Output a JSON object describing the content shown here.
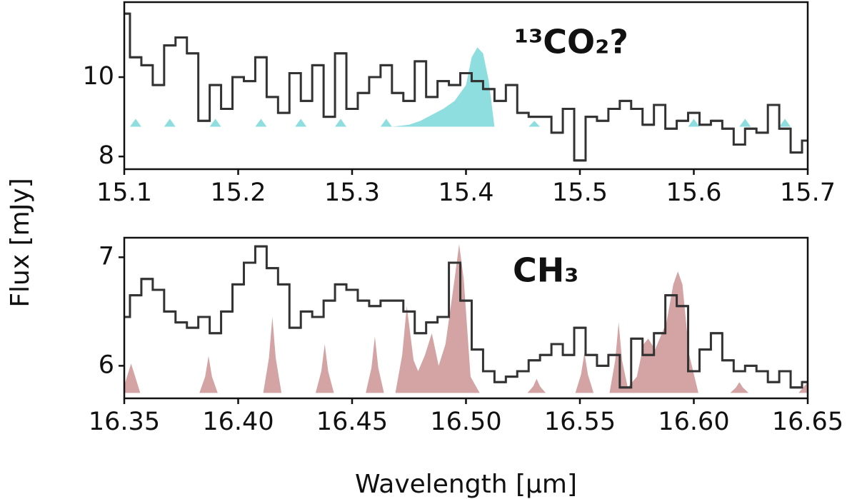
{
  "ylabel": "Flux [mJy]",
  "chart_data": [
    {
      "type": "step",
      "annotation": "¹³CO₂?",
      "annotation_color": "#8fdedf",
      "xlim": [
        15.1,
        15.7
      ],
      "ylim": [
        7.68,
        11.89
      ],
      "xticks": [
        15.1,
        15.2,
        15.3,
        15.4,
        15.5,
        15.6,
        15.7
      ],
      "yticks": [
        8,
        10
      ],
      "series": [
        {
          "fill": true,
          "color": "#8fdedf",
          "x": [
            15.1,
            15.105,
            15.11,
            15.115,
            15.135,
            15.14,
            15.145,
            15.175,
            15.18,
            15.185,
            15.215,
            15.22,
            15.225,
            15.25,
            15.255,
            15.26,
            15.285,
            15.29,
            15.295,
            15.325,
            15.33,
            15.335,
            15.35,
            15.36,
            15.37,
            15.38,
            15.39,
            15.4,
            15.405,
            15.41,
            15.415,
            15.42,
            15.425,
            15.455,
            15.46,
            15.465,
            15.595,
            15.6,
            15.605,
            15.64,
            15.645,
            15.65,
            15.675,
            15.68,
            15.685,
            15.7
          ],
          "values": [
            8.75,
            8.75,
            8.95,
            8.75,
            8.75,
            8.95,
            8.75,
            8.75,
            8.95,
            8.75,
            8.75,
            8.95,
            8.75,
            8.75,
            8.95,
            8.75,
            8.75,
            8.95,
            8.75,
            8.75,
            8.95,
            8.75,
            8.8,
            8.9,
            9.05,
            9.2,
            9.4,
            9.8,
            10.5,
            10.75,
            10.6,
            9.9,
            8.75,
            8.75,
            8.9,
            8.75,
            8.75,
            8.95,
            8.75,
            8.75,
            8.95,
            8.75,
            8.75,
            8.95,
            8.75,
            8.75
          ]
        },
        {
          "fill": false,
          "color": "#333333",
          "x": [
            15.1,
            15.11,
            15.12,
            15.13,
            15.14,
            15.15,
            15.16,
            15.17,
            15.18,
            15.19,
            15.2,
            15.21,
            15.22,
            15.23,
            15.24,
            15.25,
            15.26,
            15.27,
            15.28,
            15.29,
            15.3,
            15.31,
            15.32,
            15.33,
            15.34,
            15.35,
            15.36,
            15.37,
            15.38,
            15.39,
            15.4,
            15.41,
            15.42,
            15.43,
            15.44,
            15.45,
            15.46,
            15.47,
            15.48,
            15.49,
            15.5,
            15.51,
            15.52,
            15.53,
            15.54,
            15.55,
            15.56,
            15.57,
            15.58,
            15.59,
            15.6,
            15.61,
            15.62,
            15.63,
            15.64,
            15.65,
            15.66,
            15.67,
            15.68,
            15.69,
            15.7
          ],
          "values": [
            11.6,
            10.5,
            10.3,
            9.8,
            10.8,
            11.0,
            10.6,
            8.9,
            9.8,
            9.2,
            10.0,
            9.9,
            10.5,
            9.5,
            9.1,
            10.1,
            9.4,
            10.3,
            9.0,
            10.6,
            9.2,
            9.6,
            10.0,
            10.3,
            9.6,
            9.4,
            10.4,
            9.5,
            9.9,
            9.8,
            10.1,
            9.9,
            9.7,
            9.4,
            9.8,
            9.1,
            9.0,
            9.0,
            8.6,
            9.2,
            7.9,
            9.0,
            8.9,
            9.2,
            9.4,
            9.2,
            8.8,
            9.3,
            8.7,
            8.9,
            9.1,
            8.8,
            8.9,
            8.7,
            8.3,
            8.7,
            8.6,
            9.3,
            8.7,
            8.1,
            8.4
          ]
        }
      ]
    },
    {
      "type": "step",
      "annotation": "CH₃",
      "annotation_color": "#d4a3a3",
      "xlabel": "Wavelength [μm]",
      "xlim": [
        16.35,
        16.65
      ],
      "ylim": [
        5.7,
        7.18
      ],
      "xticks": [
        16.35,
        {
          "value": 16.4,
          "label": "16.40"
        },
        16.45,
        {
          "value": 16.5,
          "label": "16.50"
        },
        16.55,
        {
          "value": 16.6,
          "label": "16.60"
        },
        16.65
      ],
      "yticks": [
        6,
        7
      ],
      "series": [
        {
          "fill": true,
          "color": "#d4a3a3",
          "x": [
            16.35,
            16.3515,
            16.353,
            16.3545,
            16.357,
            16.383,
            16.3855,
            16.387,
            16.3885,
            16.391,
            16.411,
            16.4135,
            16.415,
            16.4165,
            16.419,
            16.434,
            16.4365,
            16.438,
            16.4395,
            16.442,
            16.456,
            16.4585,
            16.46,
            16.4615,
            16.464,
            16.469,
            16.472,
            16.474,
            16.477,
            16.479,
            16.482,
            16.485,
            16.488,
            16.491,
            16.495,
            16.497,
            16.499,
            16.502,
            16.506,
            16.527,
            16.5295,
            16.531,
            16.5325,
            16.535,
            16.548,
            16.5505,
            16.552,
            16.5535,
            16.556,
            16.563,
            16.5655,
            16.567,
            16.5685,
            16.571,
            16.575,
            16.578,
            16.58,
            16.583,
            16.588,
            16.591,
            16.593,
            16.595,
            16.598,
            16.602,
            16.616,
            16.6185,
            16.62,
            16.6215,
            16.624,
            16.646,
            16.65
          ],
          "values": [
            5.82,
            5.92,
            6.02,
            5.92,
            5.75,
            5.75,
            5.9,
            6.09,
            5.9,
            5.75,
            5.75,
            6.07,
            6.45,
            6.07,
            5.75,
            5.75,
            5.95,
            6.2,
            5.95,
            5.75,
            5.75,
            5.98,
            6.27,
            5.98,
            5.75,
            5.75,
            6.1,
            6.55,
            6.05,
            5.95,
            6.1,
            6.3,
            6.0,
            6.2,
            6.8,
            7.12,
            6.8,
            5.9,
            5.75,
            5.75,
            5.81,
            5.88,
            5.81,
            5.75,
            5.75,
            5.92,
            6.12,
            5.92,
            5.75,
            5.75,
            6.05,
            6.4,
            6.05,
            5.8,
            5.9,
            6.2,
            6.25,
            6.15,
            6.4,
            6.75,
            6.87,
            6.75,
            6.1,
            5.75,
            5.75,
            5.8,
            5.85,
            5.8,
            5.75,
            5.75,
            5.85
          ]
        },
        {
          "fill": false,
          "color": "#333333",
          "x": [
            16.35,
            16.355,
            16.36,
            16.365,
            16.37,
            16.375,
            16.38,
            16.385,
            16.39,
            16.395,
            16.4,
            16.405,
            16.41,
            16.415,
            16.42,
            16.425,
            16.43,
            16.435,
            16.44,
            16.445,
            16.45,
            16.455,
            16.46,
            16.465,
            16.47,
            16.475,
            16.48,
            16.485,
            16.49,
            16.495,
            16.5,
            16.505,
            16.51,
            16.515,
            16.52,
            16.525,
            16.53,
            16.535,
            16.54,
            16.545,
            16.55,
            16.555,
            16.56,
            16.565,
            16.57,
            16.575,
            16.58,
            16.585,
            16.59,
            16.595,
            16.6,
            16.605,
            16.61,
            16.615,
            16.62,
            16.625,
            16.63,
            16.635,
            16.64,
            16.645,
            16.65
          ],
          "values": [
            6.45,
            6.65,
            6.8,
            6.7,
            6.5,
            6.4,
            6.35,
            6.45,
            6.3,
            6.5,
            6.75,
            6.95,
            7.1,
            6.9,
            6.75,
            6.35,
            6.5,
            6.45,
            6.6,
            6.75,
            6.7,
            6.6,
            6.55,
            6.6,
            6.6,
            6.5,
            6.3,
            6.4,
            6.45,
            6.95,
            6.6,
            6.15,
            5.95,
            5.85,
            5.9,
            5.95,
            6.05,
            6.1,
            6.2,
            6.1,
            6.35,
            6.1,
            6.0,
            6.1,
            5.8,
            6.25,
            6.1,
            6.3,
            6.65,
            6.55,
            5.95,
            6.15,
            6.3,
            6.05,
            5.95,
            6.0,
            5.95,
            5.85,
            5.95,
            5.8,
            5.85
          ]
        }
      ]
    }
  ]
}
